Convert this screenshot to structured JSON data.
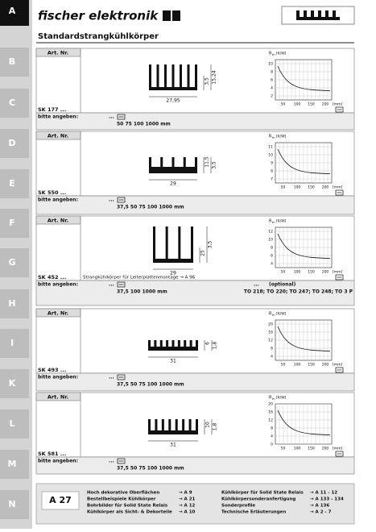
{
  "sidebar": [
    "A",
    "B",
    "C",
    "D",
    "E",
    "F",
    "G",
    "H",
    "I",
    "K",
    "L",
    "M",
    "N"
  ],
  "header": {
    "logo": "fischer elektronik",
    "subtitle": "Standardstrangkühlkörper"
  },
  "products": [
    {
      "art_label": "Art. Nr.",
      "name": "SK 177 ...",
      "dims": [
        "3,5",
        "15,24",
        "27,95"
      ],
      "graph": {
        "ylabel": "R",
        "ysub": "th",
        "yunit": "[K/W]",
        "yticks": [
          "10",
          "8",
          "6",
          "4",
          "2"
        ],
        "xticks": [
          "50",
          "100",
          "150",
          "200"
        ],
        "xunit": "[mm]"
      },
      "order_label": "bitte angeben:",
      "order_prefix": "...",
      "lengths": "50   75   100   1000 mm"
    },
    {
      "art_label": "Art. Nr.",
      "name": "SK 550 ...",
      "dims": [
        "11,5",
        "3,5",
        "29"
      ],
      "graph": {
        "ylabel": "R",
        "ysub": "th",
        "yunit": "[K/W]",
        "yticks": [
          "11",
          "10",
          "9",
          "8",
          "7"
        ],
        "xticks": [
          "50",
          "100",
          "150",
          "200"
        ],
        "xunit": "[mm]"
      },
      "order_label": "bitte angeben:",
      "order_prefix": "...",
      "lengths": "37,5   50   75   100   1000 mm"
    },
    {
      "art_label": "Art. Nr.",
      "name": "SK 452 ...",
      "dims": [
        "25",
        "3,5",
        "29"
      ],
      "graph": {
        "ylabel": "R",
        "ysub": "th",
        "yunit": "[K/W]",
        "yticks": [
          "12",
          "10",
          "8",
          "6",
          "4"
        ],
        "xticks": [
          "50",
          "100",
          "150",
          "200"
        ],
        "xunit": "[mm]"
      },
      "note": "Strangkühlkörper für Leiterplattenmontage → A 96",
      "order_label": "bitte angeben:",
      "order_prefix": "...",
      "lengths": "37,5   100   1000 mm",
      "optional_prefix": "...",
      "optional": "(optional)",
      "optional_list": "TO 218; TO 220; TO 247; TO 248; TO 3 P"
    },
    {
      "art_label": "Art. Nr.",
      "name": "SK 493 ...",
      "dims": [
        "6",
        "1,8",
        "31"
      ],
      "graph": {
        "ylabel": "R",
        "ysub": "th",
        "yunit": "[K/W]",
        "yticks": [
          "20",
          "16",
          "12",
          "8",
          "4"
        ],
        "xticks": [
          "50",
          "100",
          "150",
          "200"
        ],
        "xunit": "[mm]"
      },
      "order_label": "bitte angeben:",
      "order_prefix": "...",
      "lengths": "37,5   50   75   100   1000 mm"
    },
    {
      "art_label": "Art. Nr.",
      "name": "SK 581 ...",
      "dims": [
        "10",
        "1,8",
        "31"
      ],
      "graph": {
        "ylabel": "R",
        "ysub": "th",
        "yunit": "[K/W]",
        "yticks": [
          "20",
          "16",
          "12",
          "8",
          "4",
          "0"
        ],
        "xticks": [
          "50",
          "100",
          "150",
          "200"
        ],
        "xunit": "[mm]"
      },
      "order_label": "bitte angeben:",
      "order_prefix": "...",
      "lengths": "37,5   50   75   100   1000 mm"
    }
  ],
  "footer": {
    "page": "A 27",
    "links": [
      {
        "text": "Hoch dekorative Oberflächen",
        "ref": "→ A 9"
      },
      {
        "text": "Bestellbeispiele Kühlkörper",
        "ref": "→ A 21"
      },
      {
        "text": "Bohrbilder für Solid State Relais",
        "ref": "→ A 12"
      },
      {
        "text": "Kühlkörper als Sicht- & Dekorteile",
        "ref": "→ A 10"
      },
      {
        "text": "Kühlkörper für Solid State Relais",
        "ref": "→ A 11 - 12"
      },
      {
        "text": "Kühlkörpersonderanfertigung",
        "ref": "→ A 133 - 134"
      },
      {
        "text": "Sonderprofile",
        "ref": "→ A 136"
      },
      {
        "text": "Technische Erläuterungen",
        "ref": "→ A 2 - 7"
      }
    ]
  }
}
